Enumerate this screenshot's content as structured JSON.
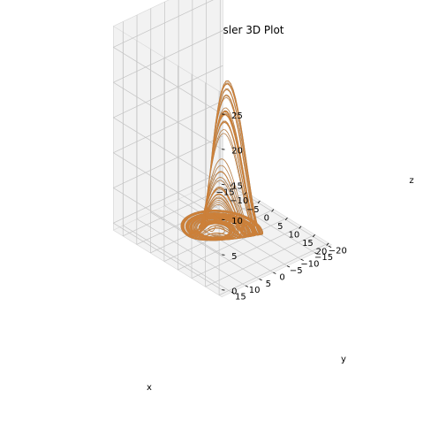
{
  "chart_data": {
    "type": "line",
    "projection": "3d",
    "title": "Atrator de Rossler 3D Plot",
    "xlabel": "x",
    "ylabel": "y",
    "zlabel": "z",
    "xlim": [
      -18.5,
      21
    ],
    "ylim": [
      -21,
      18.5
    ],
    "zlim": [
      -1,
      28
    ],
    "xticks": [
      -15,
      -10,
      -5,
      0,
      5,
      10,
      15,
      20
    ],
    "yticks": [
      -20,
      -15,
      -10,
      -5,
      0,
      5,
      10,
      15
    ],
    "zticks": [
      0,
      5,
      10,
      15,
      20,
      25
    ],
    "xtick_labels": [
      "−15",
      "−10",
      "−5",
      "0",
      "5",
      "10",
      "15",
      "20"
    ],
    "ytick_labels": [
      "−20",
      "−15",
      "−10",
      "−5",
      "0",
      "5",
      "10",
      "15"
    ],
    "ztick_labels": [
      "0",
      "5",
      "10",
      "15",
      "20",
      "25"
    ],
    "grid": true,
    "pane_color": "#f2f2f2",
    "series": [
      {
        "color": "#1f77b4",
        "system": "rossler",
        "params": {
          "a": 0.2,
          "b": 0.2,
          "c": 5.7
        },
        "initial": [
          1.0,
          1.0,
          1.0
        ],
        "dt": 0.01,
        "steps": 60000
      },
      {
        "color": "#ff7f0e",
        "system": "rossler",
        "params": {
          "a": 0.2,
          "b": 0.2,
          "c": 5.7
        },
        "initial": [
          1.0,
          1.0,
          1.0
        ],
        "dt": 0.01,
        "steps": 60000
      }
    ]
  }
}
